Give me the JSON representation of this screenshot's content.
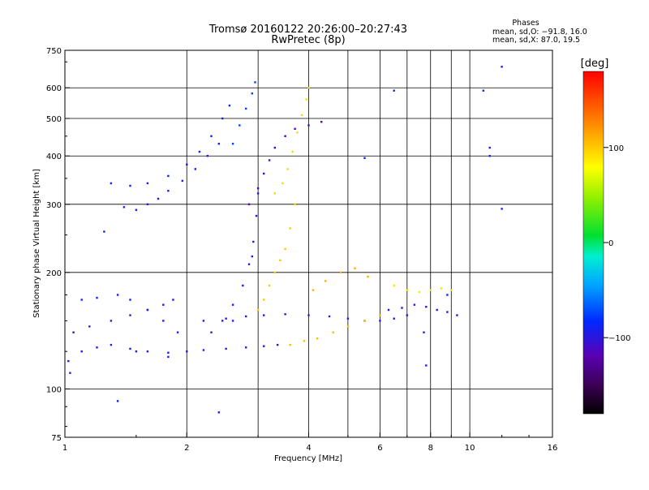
{
  "chart_data": {
    "type": "scatter",
    "title": "Tromsø 20160122 20:26:00–20:27:43",
    "subtitle": "RwPretec (8p)",
    "xlabel": "Frequency [MHz]",
    "ylabel": "Stationary phase Virtual Height [km]",
    "x_scale": "log",
    "y_scale": "log",
    "xlim": [
      1,
      16
    ],
    "ylim": [
      75,
      750
    ],
    "x_ticks": [
      1,
      2,
      4,
      6,
      8,
      10,
      16
    ],
    "x_tick_labels": [
      "1",
      "2",
      "4",
      "6",
      "8",
      "10",
      "16"
    ],
    "x_minor_grid": [
      3,
      5,
      7,
      9
    ],
    "y_ticks": [
      75,
      100,
      200,
      300,
      400,
      500,
      600,
      750
    ],
    "y_tick_labels": [
      "75",
      "100",
      "200",
      "300",
      "400",
      "500",
      "600",
      "750"
    ],
    "grid": true,
    "stats": {
      "heading": "Phases",
      "o_line": "mean, sd,O: −91.8, 16.0",
      "x_line": "mean, sd,X:  87.0, 19.5"
    },
    "colorbar": {
      "label": "[deg]",
      "range": [
        -180,
        180
      ],
      "tick_values": [
        100,
        0,
        -100
      ],
      "tick_labels": [
        "100",
        "0",
        "−100"
      ]
    },
    "series": [
      {
        "phase_deg": -95,
        "points": [
          [
            1.02,
            118
          ],
          [
            1.1,
            125
          ],
          [
            1.2,
            128
          ],
          [
            1.3,
            130
          ],
          [
            1.45,
            127
          ],
          [
            1.6,
            125
          ],
          [
            1.8,
            124
          ],
          [
            2.0,
            125
          ],
          [
            2.2,
            126
          ],
          [
            2.5,
            127
          ],
          [
            2.8,
            128
          ],
          [
            3.1,
            129
          ],
          [
            3.35,
            130
          ]
        ]
      },
      {
        "phase_deg": -100,
        "points": [
          [
            1.05,
            140
          ],
          [
            1.15,
            145
          ],
          [
            1.3,
            150
          ],
          [
            1.45,
            155
          ],
          [
            1.6,
            160
          ],
          [
            1.75,
            165
          ],
          [
            1.85,
            170
          ]
        ]
      },
      {
        "phase_deg": -90,
        "points": [
          [
            1.1,
            170
          ],
          [
            1.2,
            172
          ],
          [
            1.35,
            175
          ],
          [
            1.45,
            170
          ],
          [
            1.6,
            160
          ],
          [
            1.75,
            150
          ],
          [
            1.9,
            140
          ]
        ]
      },
      {
        "phase_deg": -100,
        "points": [
          [
            2.3,
            140
          ],
          [
            2.45,
            150
          ],
          [
            2.6,
            165
          ],
          [
            2.75,
            185
          ],
          [
            2.85,
            210
          ],
          [
            2.92,
            240
          ],
          [
            2.97,
            280
          ],
          [
            3.0,
            320
          ]
        ]
      },
      {
        "phase_deg": -95,
        "points": [
          [
            2.2,
            150
          ],
          [
            2.5,
            152
          ],
          [
            2.8,
            154
          ],
          [
            3.1,
            155
          ],
          [
            3.5,
            156
          ],
          [
            4.0,
            155
          ],
          [
            4.5,
            154
          ],
          [
            5.0,
            152
          ],
          [
            5.5,
            150
          ],
          [
            6.0,
            150
          ],
          [
            6.5,
            152
          ],
          [
            7.0,
            155
          ]
        ]
      },
      {
        "phase_deg": -95,
        "points": [
          [
            1.4,
            295
          ],
          [
            1.5,
            290
          ],
          [
            1.6,
            300
          ],
          [
            1.7,
            310
          ],
          [
            1.8,
            325
          ],
          [
            1.95,
            345
          ],
          [
            2.1,
            370
          ],
          [
            2.25,
            400
          ],
          [
            2.4,
            430
          ]
        ]
      },
      {
        "phase_deg": -85,
        "points": [
          [
            1.3,
            340
          ],
          [
            1.45,
            335
          ],
          [
            1.6,
            340
          ],
          [
            1.8,
            355
          ],
          [
            2.0,
            380
          ],
          [
            2.15,
            410
          ],
          [
            2.3,
            450
          ],
          [
            2.45,
            500
          ],
          [
            2.55,
            540
          ]
        ]
      },
      {
        "phase_deg": -110,
        "points": [
          [
            2.85,
            300
          ],
          [
            3.0,
            330
          ],
          [
            3.1,
            360
          ],
          [
            3.2,
            390
          ],
          [
            3.3,
            420
          ],
          [
            3.5,
            450
          ],
          [
            3.7,
            470
          ],
          [
            4.0,
            480
          ],
          [
            4.3,
            490
          ]
        ]
      },
      {
        "phase_deg": -75,
        "points": [
          [
            2.6,
            430
          ],
          [
            2.7,
            480
          ],
          [
            2.8,
            530
          ],
          [
            2.9,
            580
          ],
          [
            2.95,
            620
          ]
        ]
      },
      {
        "phase_deg": 95,
        "points": [
          [
            3.3,
            320
          ],
          [
            3.45,
            340
          ],
          [
            3.55,
            370
          ],
          [
            3.65,
            410
          ],
          [
            3.75,
            460
          ],
          [
            3.85,
            510
          ],
          [
            3.95,
            560
          ],
          [
            4.0,
            600
          ]
        ]
      },
      {
        "phase_deg": 100,
        "points": [
          [
            3.0,
            160
          ],
          [
            3.1,
            170
          ],
          [
            3.2,
            185
          ],
          [
            3.3,
            200
          ],
          [
            3.4,
            215
          ],
          [
            3.5,
            230
          ],
          [
            3.6,
            260
          ],
          [
            3.7,
            300
          ]
        ]
      },
      {
        "phase_deg": 105,
        "points": [
          [
            3.6,
            130
          ],
          [
            3.9,
            133
          ],
          [
            4.2,
            135
          ],
          [
            4.6,
            140
          ],
          [
            5.0,
            145
          ],
          [
            5.5,
            150
          ],
          [
            6.0,
            155
          ]
        ]
      },
      {
        "phase_deg": 90,
        "points": [
          [
            6.5,
            185
          ],
          [
            7.0,
            180
          ],
          [
            7.5,
            178
          ],
          [
            8.0,
            180
          ],
          [
            8.5,
            182
          ],
          [
            9.0,
            180
          ]
        ]
      },
      {
        "phase_deg": -100,
        "points": [
          [
            6.3,
            160
          ],
          [
            6.8,
            162
          ],
          [
            7.3,
            165
          ],
          [
            7.8,
            163
          ],
          [
            8.3,
            160
          ],
          [
            8.8,
            158
          ],
          [
            9.3,
            155
          ]
        ]
      },
      {
        "phase_deg": 110,
        "points": [
          [
            4.1,
            180
          ],
          [
            4.4,
            190
          ],
          [
            4.8,
            200
          ],
          [
            5.2,
            205
          ],
          [
            5.6,
            195
          ]
        ]
      },
      {
        "phase_deg": -90,
        "points": [
          [
            1.03,
            110
          ],
          [
            1.5,
            125
          ],
          [
            1.8,
            121
          ],
          [
            2.6,
            150
          ],
          [
            2.9,
            220
          ],
          [
            1.25,
            255
          ],
          [
            1.35,
            93
          ],
          [
            2.4,
            87
          ],
          [
            5.5,
            395
          ],
          [
            6.5,
            590
          ],
          [
            11.2,
            400
          ],
          [
            12.0,
            680
          ],
          [
            12.0,
            292
          ],
          [
            11.2,
            420
          ],
          [
            10.8,
            590
          ],
          [
            7.8,
            115
          ],
          [
            7.7,
            140
          ],
          [
            8.8,
            175
          ]
        ]
      }
    ]
  }
}
